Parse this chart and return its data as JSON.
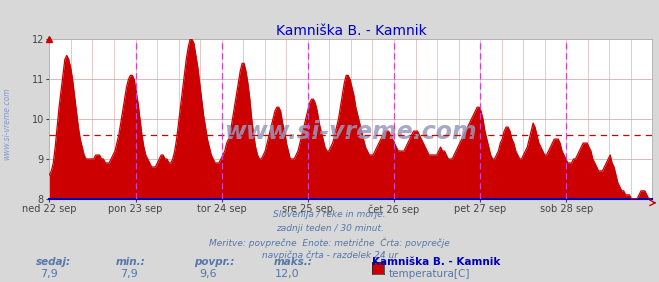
{
  "title": "Kamniška B. - Kamnik",
  "title_color": "#0000cc",
  "bg_color": "#d8d8d8",
  "plot_bg_color": "#ffffff",
  "grid_color": "#d0a0a0",
  "line_color": "#cc0000",
  "avg_value": 9.6,
  "ylim": [
    8.0,
    12.0
  ],
  "yticks": [
    8,
    9,
    10,
    11,
    12
  ],
  "x_labels": [
    "ned 22 sep",
    "pon 23 sep",
    "tor 24 sep",
    "sre 25 sep",
    "čet 26 sep",
    "pet 27 sep",
    "sob 28 sep"
  ],
  "x_vlines_color": "#cc44cc",
  "watermark": "www.si-vreme.com",
  "watermark_color": "#9999bb",
  "side_label": "www.si-vreme.com",
  "footer_lines": [
    "Slovenija / reke in morje.",
    "zadnji teden / 30 minut.",
    "Meritve: povprečne  Enote: metrične  Črta: povprečje",
    "navpična črta - razdelek 24 ur"
  ],
  "footer_color": "#5577aa",
  "stats_labels": [
    "sedaj:",
    "min.:",
    "povpr.:",
    "maks.:"
  ],
  "stats_values": [
    "7,9",
    "7,9",
    "9,6",
    "12,0"
  ],
  "stats_color": "#5577aa",
  "legend_title": "Kamniška B. - Kamnik",
  "legend_item": "temperatura[C]",
  "legend_color": "#cc0000",
  "temperature_data": [
    8.6,
    8.7,
    8.9,
    9.3,
    9.8,
    10.3,
    10.7,
    11.1,
    11.5,
    11.6,
    11.5,
    11.3,
    11.0,
    10.6,
    10.2,
    9.8,
    9.5,
    9.3,
    9.1,
    9.0,
    9.0,
    9.0,
    9.0,
    9.0,
    9.1,
    9.1,
    9.1,
    9.0,
    9.0,
    8.9,
    8.9,
    8.9,
    9.0,
    9.1,
    9.2,
    9.4,
    9.6,
    9.9,
    10.2,
    10.5,
    10.8,
    11.0,
    11.1,
    11.1,
    11.0,
    10.7,
    10.4,
    10.0,
    9.6,
    9.3,
    9.1,
    9.0,
    8.9,
    8.8,
    8.8,
    8.8,
    8.9,
    9.0,
    9.1,
    9.1,
    9.0,
    9.0,
    8.9,
    8.9,
    9.0,
    9.2,
    9.5,
    9.9,
    10.3,
    10.7,
    11.1,
    11.5,
    11.8,
    12.0,
    12.0,
    11.9,
    11.6,
    11.3,
    10.9,
    10.5,
    10.1,
    9.8,
    9.5,
    9.3,
    9.1,
    9.0,
    8.9,
    8.9,
    8.9,
    9.0,
    9.1,
    9.2,
    9.4,
    9.5,
    9.7,
    10.0,
    10.3,
    10.6,
    10.9,
    11.2,
    11.4,
    11.4,
    11.2,
    10.9,
    10.5,
    10.0,
    9.6,
    9.3,
    9.1,
    9.0,
    9.0,
    9.1,
    9.2,
    9.4,
    9.6,
    9.8,
    10.0,
    10.2,
    10.3,
    10.3,
    10.2,
    9.9,
    9.7,
    9.4,
    9.2,
    9.0,
    9.0,
    9.0,
    9.1,
    9.2,
    9.4,
    9.6,
    9.8,
    10.0,
    10.2,
    10.4,
    10.5,
    10.5,
    10.4,
    10.2,
    9.9,
    9.7,
    9.5,
    9.3,
    9.2,
    9.2,
    9.3,
    9.4,
    9.6,
    9.8,
    10.0,
    10.3,
    10.6,
    10.9,
    11.1,
    11.1,
    11.0,
    10.8,
    10.6,
    10.3,
    10.1,
    9.9,
    9.7,
    9.5,
    9.3,
    9.2,
    9.1,
    9.1,
    9.1,
    9.2,
    9.3,
    9.4,
    9.5,
    9.6,
    9.7,
    9.7,
    9.7,
    9.6,
    9.5,
    9.4,
    9.3,
    9.2,
    9.2,
    9.2,
    9.2,
    9.3,
    9.4,
    9.5,
    9.6,
    9.7,
    9.7,
    9.7,
    9.6,
    9.5,
    9.4,
    9.3,
    9.2,
    9.1,
    9.1,
    9.1,
    9.1,
    9.1,
    9.2,
    9.3,
    9.2,
    9.2,
    9.1,
    9.0,
    9.0,
    9.0,
    9.1,
    9.2,
    9.3,
    9.4,
    9.5,
    9.6,
    9.7,
    9.8,
    9.9,
    10.0,
    10.1,
    10.2,
    10.3,
    10.3,
    10.2,
    10.0,
    9.7,
    9.5,
    9.3,
    9.1,
    9.0,
    9.0,
    9.1,
    9.2,
    9.4,
    9.5,
    9.7,
    9.8,
    9.8,
    9.7,
    9.5,
    9.4,
    9.2,
    9.1,
    9.0,
    9.0,
    9.1,
    9.2,
    9.3,
    9.5,
    9.7,
    9.9,
    9.8,
    9.6,
    9.4,
    9.3,
    9.2,
    9.1,
    9.1,
    9.2,
    9.3,
    9.4,
    9.5,
    9.5,
    9.5,
    9.4,
    9.2,
    9.1,
    9.0,
    8.9,
    8.9,
    8.9,
    9.0,
    9.0,
    9.1,
    9.2,
    9.3,
    9.4,
    9.4,
    9.4,
    9.3,
    9.2,
    9.0,
    8.9,
    8.8,
    8.7,
    8.7,
    8.7,
    8.8,
    8.9,
    9.0,
    9.1,
    8.9,
    8.8,
    8.6,
    8.4,
    8.3,
    8.2,
    8.2,
    8.1,
    8.1,
    8.1,
    8.0,
    8.0,
    8.0,
    8.0,
    8.1,
    8.2,
    8.2,
    8.2,
    8.1,
    8.0,
    7.9
  ]
}
